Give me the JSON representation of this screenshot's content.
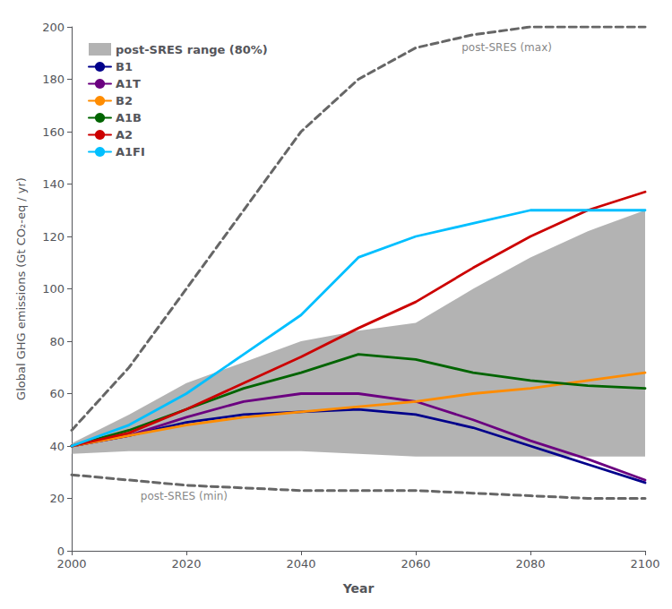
{
  "chart_data": {
    "type": "line",
    "xlabel": "Year",
    "ylabel": "Global GHG emissions (Gt CO₂-eq / yr)",
    "x": [
      2000,
      2010,
      2020,
      2030,
      2040,
      2050,
      2060,
      2070,
      2080,
      2090,
      2100
    ],
    "xlim": [
      2000,
      2100
    ],
    "xticks": [
      2000,
      2020,
      2040,
      2060,
      2080,
      2100
    ],
    "ylim": [
      0,
      200
    ],
    "yticks": [
      0,
      20,
      40,
      60,
      80,
      100,
      120,
      140,
      160,
      180,
      200
    ],
    "grid": false,
    "legend": "upper left",
    "series": [
      {
        "name": "post-SRES range (80%)",
        "type": "area",
        "color": "#999999",
        "lower": [
          37,
          38,
          38,
          38,
          38,
          37,
          36,
          36,
          36,
          36,
          36
        ],
        "upper": [
          41,
          52,
          64,
          72,
          80,
          84,
          87,
          100,
          112,
          122,
          130
        ]
      },
      {
        "type": "line",
        "line_style": "dashed",
        "color": "#666666",
        "values": [
          46,
          70,
          100,
          130,
          160,
          180,
          192,
          197,
          200,
          200,
          200
        ]
      },
      {
        "type": "line",
        "line_style": "dashed",
        "color": "#666666",
        "values": [
          29,
          27,
          25,
          24,
          23,
          23,
          23,
          22,
          21,
          20,
          20
        ]
      },
      {
        "name": "B1",
        "type": "line",
        "color": "#00008B",
        "values": [
          40,
          44,
          49,
          52,
          53,
          54,
          52,
          47,
          40,
          33,
          26
        ]
      },
      {
        "name": "A1T",
        "type": "line",
        "color": "#6B0080",
        "values": [
          40,
          44,
          51,
          57,
          60,
          60,
          57,
          50,
          42,
          35,
          27
        ]
      },
      {
        "name": "B2",
        "type": "line",
        "color": "#FF8C00",
        "values": [
          40,
          44,
          48,
          51,
          53,
          55,
          57,
          60,
          62,
          65,
          68
        ]
      },
      {
        "name": "A1B",
        "type": "line",
        "color": "#006400",
        "values": [
          40,
          46,
          54,
          62,
          68,
          75,
          73,
          68,
          65,
          63,
          62
        ]
      },
      {
        "name": "A2",
        "type": "line",
        "color": "#CC0000",
        "values": [
          40,
          45,
          54,
          64,
          74,
          85,
          95,
          108,
          120,
          130,
          137
        ]
      },
      {
        "name": "A1FI",
        "type": "line",
        "color": "#00BFFF",
        "values": [
          40,
          48,
          60,
          75,
          90,
          112,
          120,
          125,
          130,
          130,
          130
        ]
      }
    ],
    "annotations": [
      {
        "text": "post-SRES (max)",
        "x": 2068,
        "y": 192,
        "color": "#666666"
      },
      {
        "text": "post-SRES (min)",
        "x": 2012,
        "y": 21,
        "color": "#666666"
      }
    ]
  }
}
